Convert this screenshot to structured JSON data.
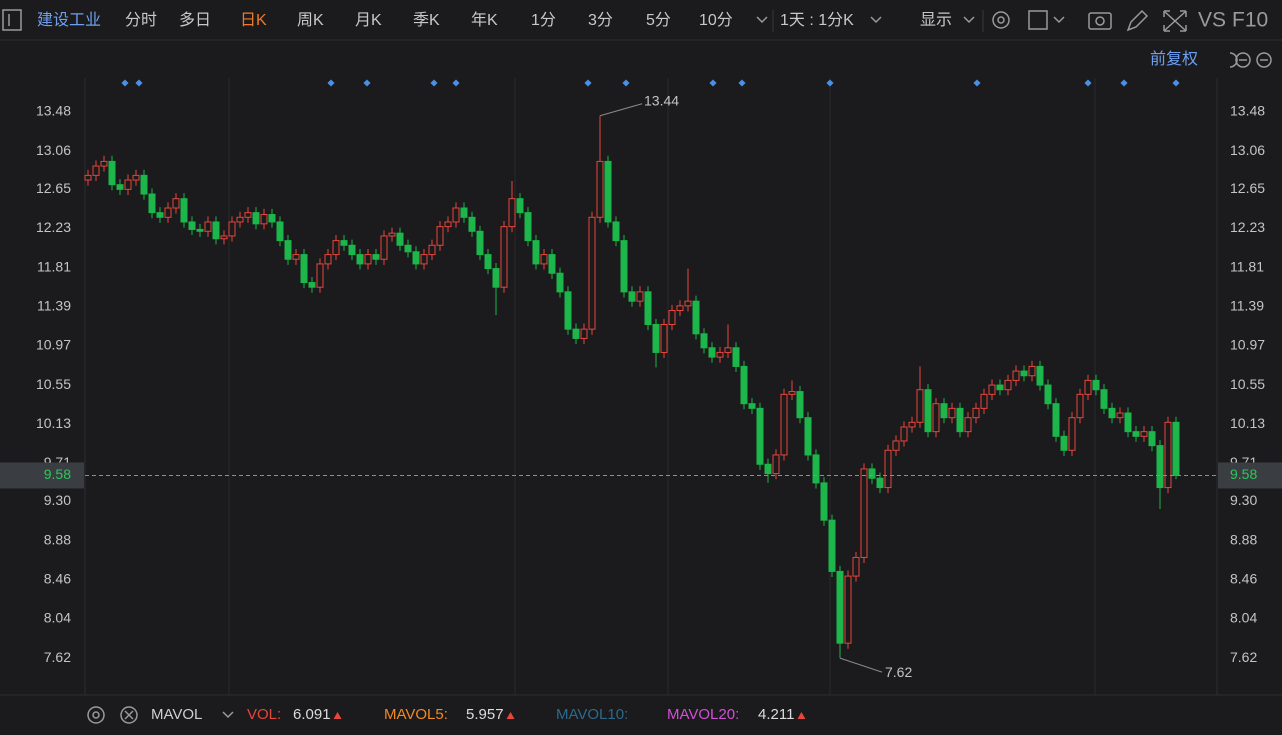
{
  "toolbar": {
    "stock": "建设工业",
    "periods": [
      "分时",
      "多日",
      "日K",
      "周K",
      "月K",
      "季K",
      "年K",
      "1分",
      "3分",
      "5分",
      "10分"
    ],
    "range": "1天 : 1分K",
    "display": "显示",
    "vs": "VS",
    "f10": "F10"
  },
  "adjust": "前复权",
  "chart_data": {
    "type": "candlestick",
    "up_color": "#e8453c",
    "down_color": "#1db64a",
    "ylim": [
      7.224,
      13.845
    ],
    "yticks": [
      13.48,
      13.06,
      12.65,
      12.23,
      11.81,
      11.39,
      10.97,
      10.55,
      10.13,
      9.71,
      {
        "value": 9.3,
        "label": "9.30"
      },
      8.88,
      8.46,
      8.04,
      7.62
    ],
    "last_price": 9.58,
    "ohlc": [
      [
        12.75,
        12.86,
        12.69,
        12.8
      ],
      [
        12.8,
        12.96,
        12.74,
        12.9
      ],
      [
        12.9,
        13.01,
        12.84,
        12.95
      ],
      [
        12.95,
        13.01,
        12.64,
        12.7
      ],
      [
        12.7,
        12.76,
        12.59,
        12.65
      ],
      [
        12.65,
        12.81,
        12.59,
        12.75
      ],
      [
        12.75,
        12.86,
        12.69,
        12.8
      ],
      [
        12.8,
        12.86,
        12.54,
        12.6
      ],
      [
        12.6,
        12.66,
        12.34,
        12.4
      ],
      [
        12.4,
        12.46,
        12.29,
        12.35
      ],
      [
        12.35,
        12.51,
        12.29,
        12.45
      ],
      [
        12.45,
        12.61,
        12.39,
        12.55
      ],
      [
        12.55,
        12.61,
        12.24,
        12.3
      ],
      [
        12.3,
        12.36,
        12.16,
        12.22
      ],
      [
        12.22,
        12.28,
        12.14,
        12.2
      ],
      [
        12.2,
        12.36,
        12.14,
        12.3
      ],
      [
        12.3,
        12.36,
        12.06,
        12.12
      ],
      [
        12.12,
        12.21,
        12.06,
        12.15
      ],
      [
        12.15,
        12.36,
        12.09,
        12.3
      ],
      [
        12.3,
        12.41,
        12.24,
        12.35
      ],
      [
        12.35,
        12.46,
        12.29,
        12.4
      ],
      [
        12.4,
        12.46,
        12.22,
        12.28
      ],
      [
        12.28,
        12.44,
        12.22,
        12.38
      ],
      [
        12.38,
        12.44,
        12.24,
        12.3
      ],
      [
        12.3,
        12.36,
        12.04,
        12.1
      ],
      [
        12.1,
        12.16,
        11.84,
        11.9
      ],
      [
        11.9,
        12.01,
        11.84,
        11.95
      ],
      [
        11.95,
        12.01,
        11.59,
        11.65
      ],
      [
        11.65,
        11.71,
        11.54,
        11.6
      ],
      [
        11.6,
        11.91,
        11.54,
        11.85
      ],
      [
        11.85,
        12.01,
        11.79,
        11.95
      ],
      [
        11.95,
        12.16,
        11.89,
        12.1
      ],
      [
        12.1,
        12.16,
        11.99,
        12.05
      ],
      [
        12.05,
        12.11,
        11.89,
        11.95
      ],
      [
        11.95,
        12.01,
        11.79,
        11.85
      ],
      [
        11.85,
        12.01,
        11.79,
        11.95
      ],
      [
        11.95,
        12.01,
        11.84,
        11.9
      ],
      [
        11.9,
        12.21,
        11.84,
        12.15
      ],
      [
        12.15,
        12.24,
        12.09,
        12.18
      ],
      [
        12.18,
        12.24,
        11.99,
        12.05
      ],
      [
        12.05,
        12.11,
        11.92,
        11.98
      ],
      [
        11.98,
        12.04,
        11.79,
        11.85
      ],
      [
        11.85,
        12.01,
        11.79,
        11.95
      ],
      [
        11.95,
        12.11,
        11.89,
        12.05
      ],
      [
        12.05,
        12.31,
        11.99,
        12.25
      ],
      [
        12.25,
        12.36,
        12.19,
        12.3
      ],
      [
        12.3,
        12.51,
        12.24,
        12.45
      ],
      [
        12.45,
        12.51,
        12.29,
        12.35
      ],
      [
        12.35,
        12.41,
        12.14,
        12.2
      ],
      [
        12.2,
        12.26,
        11.89,
        11.95
      ],
      [
        11.95,
        12.01,
        11.74,
        11.8
      ],
      [
        11.8,
        11.86,
        11.3,
        11.6
      ],
      [
        11.6,
        12.31,
        11.54,
        12.25
      ],
      [
        12.25,
        12.74,
        12.19,
        12.55
      ],
      [
        12.55,
        12.61,
        12.34,
        12.4
      ],
      [
        12.4,
        12.46,
        12.04,
        12.1
      ],
      [
        12.1,
        12.16,
        11.79,
        11.85
      ],
      [
        11.85,
        12.01,
        11.79,
        11.95
      ],
      [
        11.95,
        12.01,
        11.69,
        11.75
      ],
      [
        11.75,
        11.81,
        11.49,
        11.55
      ],
      [
        11.55,
        11.61,
        11.09,
        11.15
      ],
      [
        11.15,
        11.21,
        10.99,
        11.05
      ],
      [
        11.05,
        11.21,
        10.99,
        11.15
      ],
      [
        11.15,
        12.41,
        11.09,
        12.35
      ],
      [
        12.35,
        13.44,
        12.29,
        12.95
      ],
      [
        12.95,
        13.01,
        12.24,
        12.3
      ],
      [
        12.3,
        12.36,
        12.04,
        12.1
      ],
      [
        12.1,
        12.16,
        11.49,
        11.55
      ],
      [
        11.55,
        11.61,
        11.39,
        11.45
      ],
      [
        11.45,
        11.61,
        11.39,
        11.55
      ],
      [
        11.55,
        11.61,
        11.14,
        11.2
      ],
      [
        11.2,
        11.26,
        10.74,
        10.9
      ],
      [
        10.9,
        11.26,
        10.84,
        11.2
      ],
      [
        11.2,
        11.41,
        11.14,
        11.35
      ],
      [
        11.35,
        11.46,
        11.29,
        11.4
      ],
      [
        11.4,
        11.8,
        11.34,
        11.45
      ],
      [
        11.45,
        11.51,
        11.04,
        11.1
      ],
      [
        11.1,
        11.16,
        10.89,
        10.95
      ],
      [
        10.95,
        11.01,
        10.79,
        10.85
      ],
      [
        10.85,
        10.96,
        10.79,
        10.9
      ],
      [
        10.9,
        11.2,
        10.84,
        10.95
      ],
      [
        10.95,
        11.01,
        10.69,
        10.75
      ],
      [
        10.75,
        10.81,
        10.29,
        10.35
      ],
      [
        10.35,
        10.41,
        10.24,
        10.3
      ],
      [
        10.3,
        10.36,
        9.64,
        9.7
      ],
      [
        9.7,
        9.76,
        9.5,
        9.6
      ],
      [
        9.6,
        9.86,
        9.54,
        9.8
      ],
      [
        9.8,
        10.51,
        9.74,
        10.45
      ],
      [
        10.45,
        10.6,
        10.39,
        10.48
      ],
      [
        10.48,
        10.54,
        10.14,
        10.2
      ],
      [
        10.2,
        10.26,
        9.74,
        9.8
      ],
      [
        9.8,
        9.86,
        9.44,
        9.5
      ],
      [
        9.5,
        9.56,
        9.04,
        9.1
      ],
      [
        9.1,
        9.16,
        8.49,
        8.55
      ],
      [
        8.55,
        8.61,
        7.62,
        7.78
      ],
      [
        7.78,
        8.56,
        7.72,
        8.5
      ],
      [
        8.5,
        8.76,
        8.44,
        8.7
      ],
      [
        8.7,
        9.71,
        8.64,
        9.65
      ],
      [
        9.65,
        9.71,
        9.49,
        9.55
      ],
      [
        9.55,
        9.61,
        9.39,
        9.45
      ],
      [
        9.45,
        9.91,
        9.39,
        9.85
      ],
      [
        9.85,
        10.01,
        9.79,
        9.95
      ],
      [
        9.95,
        10.16,
        9.89,
        10.1
      ],
      [
        10.1,
        10.21,
        10.04,
        10.15
      ],
      [
        10.15,
        10.75,
        10.09,
        10.5
      ],
      [
        10.5,
        10.56,
        9.99,
        10.05
      ],
      [
        10.05,
        10.41,
        9.99,
        10.35
      ],
      [
        10.35,
        10.41,
        10.14,
        10.2
      ],
      [
        10.2,
        10.36,
        10.14,
        10.3
      ],
      [
        10.3,
        10.36,
        9.99,
        10.05
      ],
      [
        10.05,
        10.26,
        9.99,
        10.2
      ],
      [
        10.2,
        10.36,
        10.14,
        10.3
      ],
      [
        10.3,
        10.51,
        10.24,
        10.45
      ],
      [
        10.45,
        10.61,
        10.39,
        10.55
      ],
      [
        10.55,
        10.61,
        10.44,
        10.5
      ],
      [
        10.5,
        10.66,
        10.44,
        10.6
      ],
      [
        10.6,
        10.76,
        10.54,
        10.7
      ],
      [
        10.7,
        10.76,
        10.59,
        10.65
      ],
      [
        10.65,
        10.81,
        10.59,
        10.75
      ],
      [
        10.75,
        10.81,
        10.49,
        10.55
      ],
      [
        10.55,
        10.61,
        10.29,
        10.35
      ],
      [
        10.35,
        10.41,
        9.94,
        10.0
      ],
      [
        10.0,
        10.06,
        9.79,
        9.85
      ],
      [
        9.85,
        10.26,
        9.79,
        10.2
      ],
      [
        10.2,
        10.51,
        10.14,
        10.45
      ],
      [
        10.45,
        10.66,
        10.39,
        10.6
      ],
      [
        10.6,
        10.66,
        10.44,
        10.5
      ],
      [
        10.5,
        10.56,
        10.24,
        10.3
      ],
      [
        10.3,
        10.36,
        10.14,
        10.2
      ],
      [
        10.2,
        10.31,
        10.14,
        10.25
      ],
      [
        10.25,
        10.31,
        9.99,
        10.05
      ],
      [
        10.05,
        10.11,
        9.94,
        10.0
      ],
      [
        10.0,
        10.11,
        9.94,
        10.05
      ],
      [
        10.05,
        10.11,
        9.84,
        9.9
      ],
      [
        9.9,
        9.96,
        9.22,
        9.45
      ],
      [
        9.45,
        10.21,
        9.39,
        10.15
      ],
      [
        10.15,
        10.21,
        9.54,
        9.58
      ]
    ]
  },
  "indicator_bar": {
    "name": "MAVOL",
    "items": [
      {
        "label": "VOL:",
        "value": 6.091,
        "color": "#e8453c"
      },
      {
        "label": "MAVOL5:",
        "value": 5.957,
        "color": "#f08a24"
      },
      {
        "label": "MAVOL10:",
        "color": "#2c6a8c"
      },
      {
        "label": "MAVOL20:",
        "value": 4.211,
        "color": "#d24fd6"
      }
    ]
  }
}
